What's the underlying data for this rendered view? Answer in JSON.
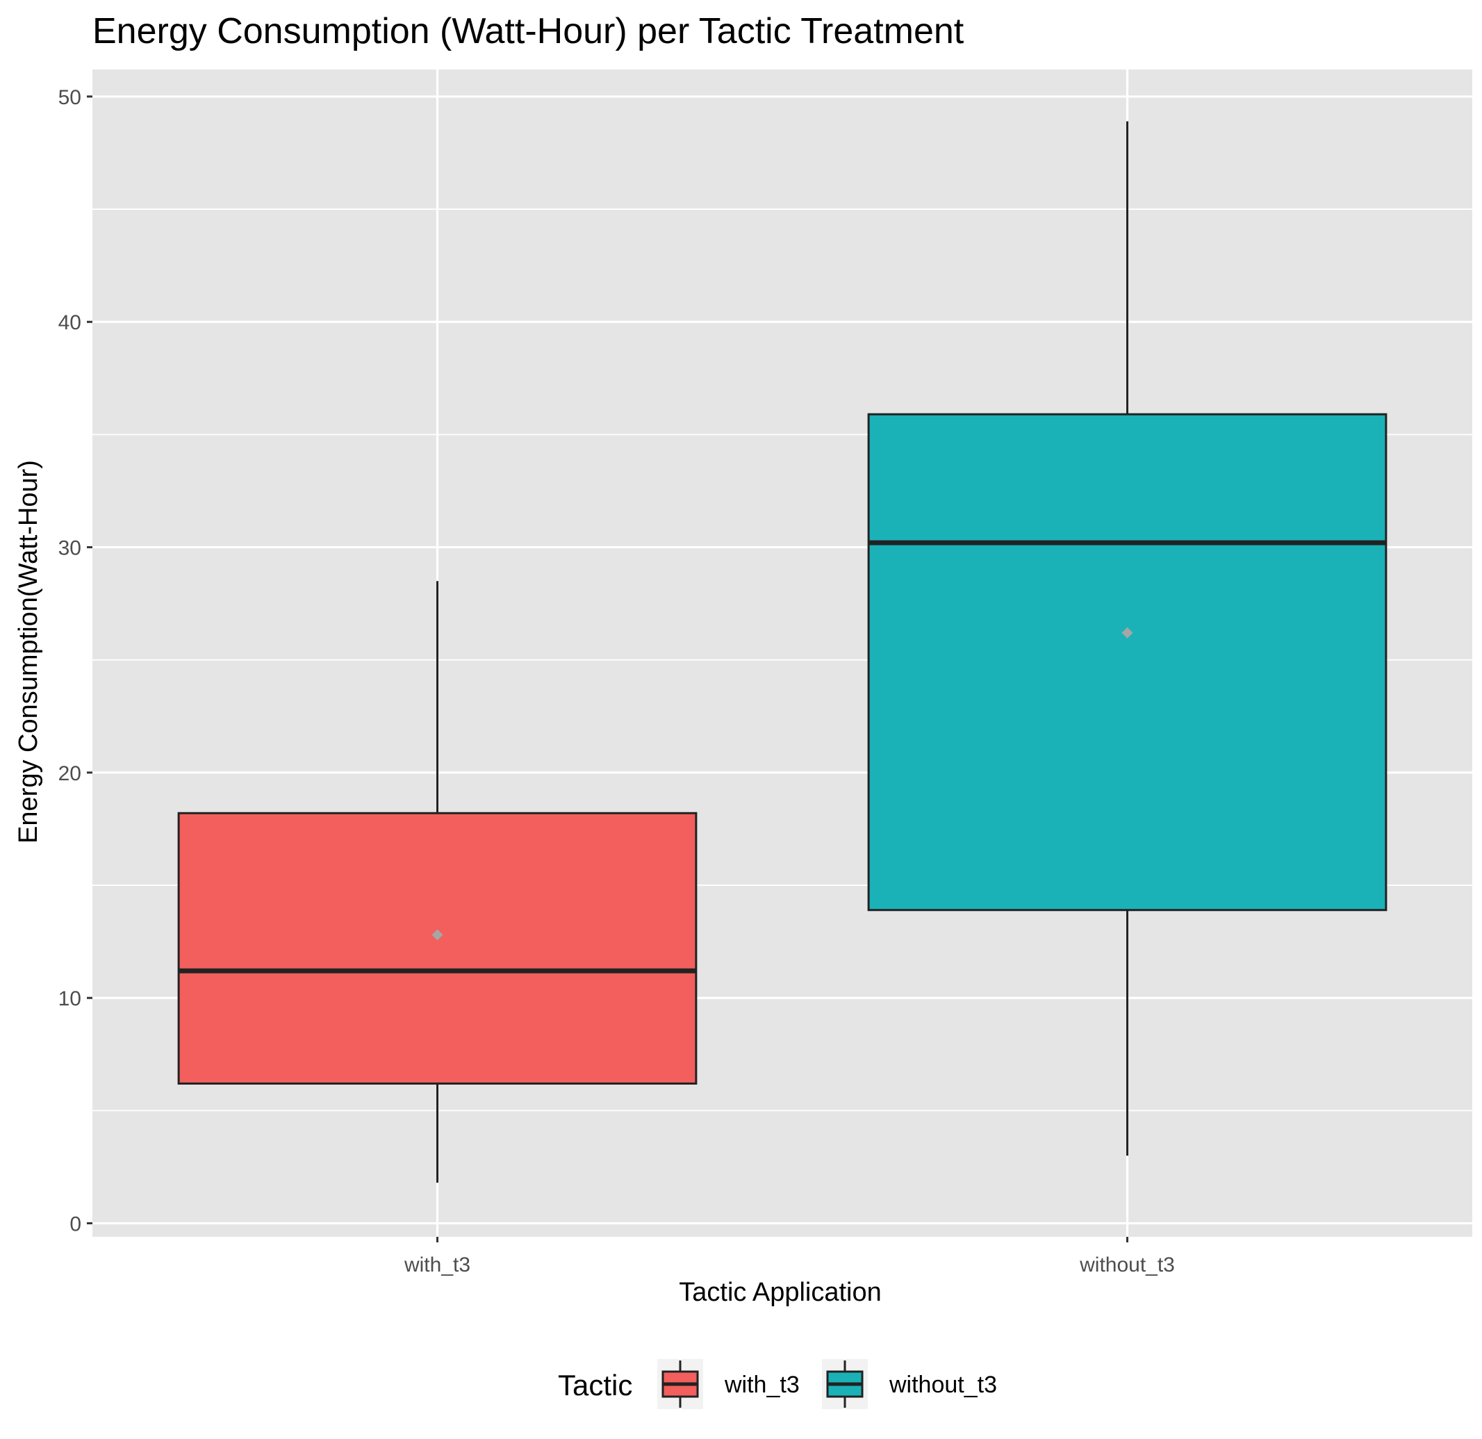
{
  "chart_data": {
    "type": "boxplot",
    "title": "Energy Consumption (Watt-Hour) per Tactic Treatment",
    "xlabel": "Tactic Application",
    "ylabel": "Energy Consumption(Watt-Hour)",
    "ylim": [
      -0.6,
      51.2
    ],
    "yticks": [
      0,
      10,
      20,
      30,
      40,
      50
    ],
    "categories": [
      "with_t3",
      "without_t3"
    ],
    "series": [
      {
        "name": "with_t3",
        "color": "#F25F5C",
        "whisker_low": 1.8,
        "q1": 6.2,
        "median": 11.2,
        "q3": 18.2,
        "whisker_high": 28.5,
        "mean": 12.8
      },
      {
        "name": "without_t3",
        "color": "#1AB2B7",
        "whisker_low": 3.0,
        "q1": 13.9,
        "median": 30.2,
        "q3": 35.9,
        "whisker_high": 48.9,
        "mean": 26.2
      }
    ],
    "legend": {
      "title": "Tactic",
      "position": "bottom",
      "entries": [
        "with_t3",
        "without_t3"
      ]
    },
    "grid": true,
    "colors": {
      "panel_background": "#E5E5E5",
      "grid": "#FFFFFF",
      "box_outline": "#222222",
      "mean_marker": "#A6A6A6"
    }
  }
}
